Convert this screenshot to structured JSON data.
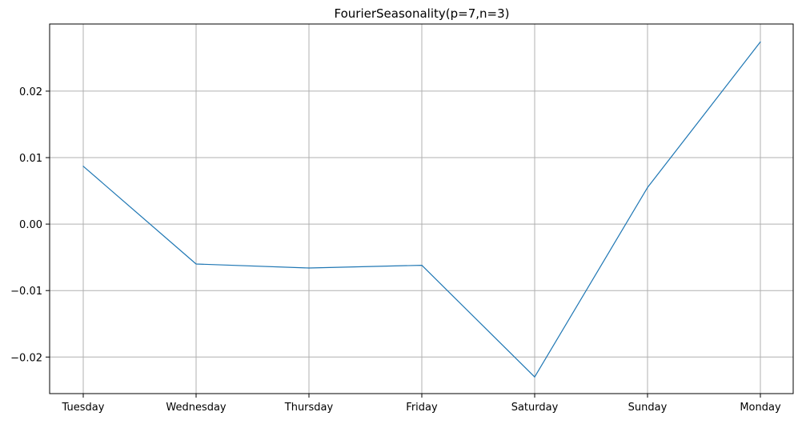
{
  "chart_data": {
    "type": "line",
    "title": "FourierSeasonality(p=7,n=3)",
    "xlabel": "",
    "ylabel": "",
    "categories": [
      "Tuesday",
      "Wednesday",
      "Thursday",
      "Friday",
      "Saturday",
      "Sunday",
      "Monday"
    ],
    "series": [
      {
        "values": [
          0.0087,
          -0.006,
          -0.0066,
          -0.0062,
          -0.023,
          0.0055,
          0.0274
        ],
        "color": "#1f77b4"
      }
    ],
    "yticks": [
      -0.02,
      -0.01,
      0.0,
      0.01,
      0.02
    ],
    "ytick_labels": [
      "−0.02",
      "−0.01",
      "0.00",
      "0.01",
      "0.02"
    ],
    "ylim": [
      -0.0255,
      0.0301
    ],
    "grid": true,
    "legend": "none"
  }
}
